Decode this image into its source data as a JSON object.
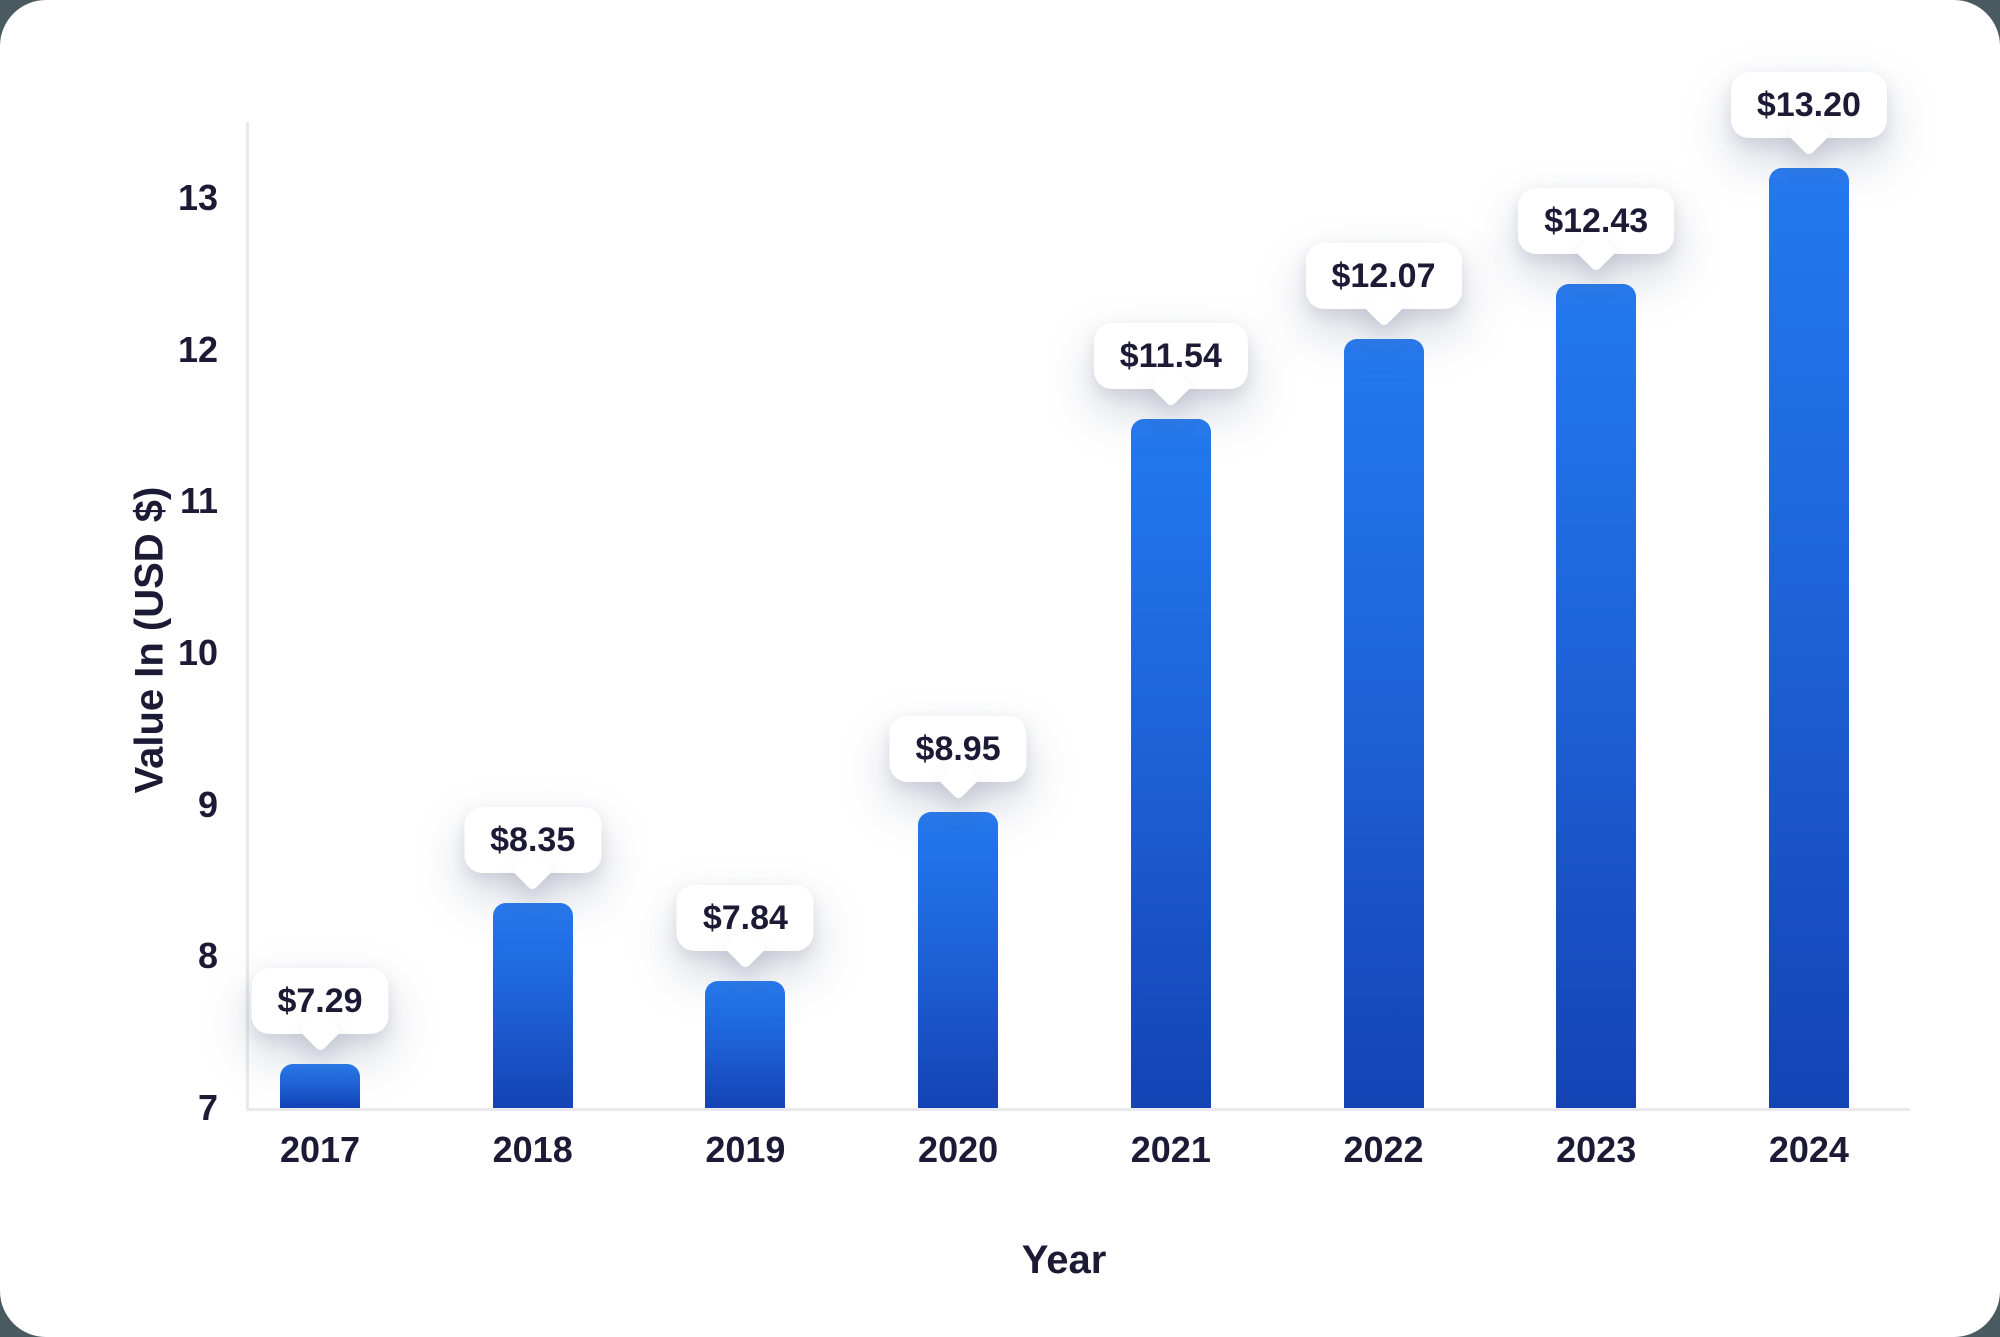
{
  "page": {
    "background_color": "#4a5a61",
    "card_background_color": "#ffffff"
  },
  "chart_data": {
    "type": "bar",
    "title": "",
    "xlabel": "Year",
    "ylabel": "Value In (USD $)",
    "categories": [
      "2017",
      "2018",
      "2019",
      "2020",
      "2021",
      "2022",
      "2023",
      "2024"
    ],
    "values": [
      7.29,
      8.35,
      7.84,
      8.95,
      11.54,
      12.07,
      12.43,
      13.2
    ],
    "value_labels": [
      "$7.29",
      "$8.35",
      "$7.84",
      "$8.95",
      "$11.54",
      "$12.07",
      "$12.43",
      "$13.20"
    ],
    "ylim": [
      7,
      13.5
    ],
    "yticks": [
      7,
      8,
      9,
      10,
      11,
      12,
      13
    ],
    "grid": false,
    "legend": null,
    "colors": {
      "bar_gradient_top": "#2379F1",
      "bar_gradient_bottom": "#1443B4",
      "axis_line": "#e9e9ed",
      "text": "#1d1a35",
      "tooltip_background": "#ffffff"
    }
  }
}
